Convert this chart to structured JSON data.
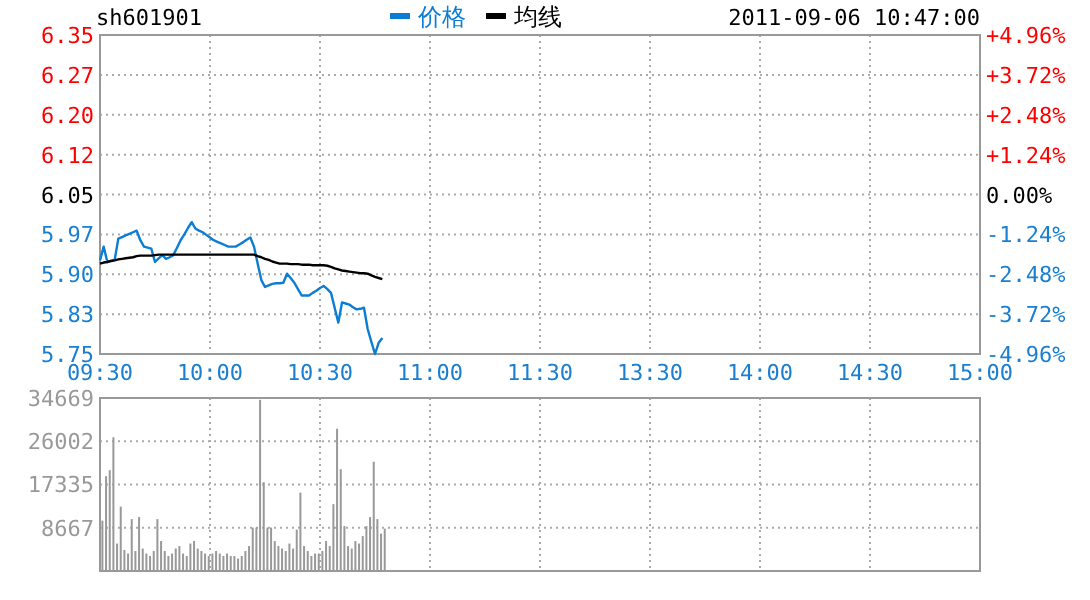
{
  "chart_data": [
    {
      "type": "line",
      "title": "sh601901",
      "subtitle": "2011-09-06 10:47:00",
      "legend": "top",
      "grid": true,
      "categories": [
        "09:30",
        null,
        null,
        null,
        null,
        null,
        null,
        null,
        null,
        null,
        null,
        null,
        null,
        null,
        null,
        null,
        null,
        null,
        null,
        null,
        null,
        null,
        null,
        null,
        null,
        null,
        null,
        null,
        null,
        null,
        "10:00",
        null,
        null,
        null,
        null,
        null,
        null,
        null,
        null,
        null,
        null,
        null,
        null,
        null,
        null,
        null,
        null,
        null,
        null,
        null,
        null,
        null,
        null,
        null,
        null,
        null,
        null,
        null,
        null,
        null,
        "10:30",
        null,
        null,
        null,
        null,
        null,
        null,
        null,
        null,
        null,
        null,
        null,
        null,
        null,
        null,
        null,
        null,
        null,
        null,
        null,
        null,
        null,
        null,
        null,
        null,
        null,
        null,
        null,
        null,
        null,
        "11:00",
        null,
        null,
        null,
        null,
        null,
        null,
        null,
        null,
        null,
        null,
        null,
        null,
        null,
        null,
        null,
        null,
        null,
        null,
        null,
        null,
        null,
        null,
        null,
        null,
        null,
        null,
        null,
        null,
        null,
        "11:30",
        null,
        null,
        null,
        null,
        null,
        null,
        null,
        null,
        null,
        null,
        null,
        null,
        null,
        null,
        null,
        null,
        null,
        null,
        null,
        null,
        null,
        null,
        null,
        null,
        null,
        null,
        null,
        null,
        null,
        "13:30",
        null,
        null,
        null,
        null,
        null,
        null,
        null,
        null,
        null,
        null,
        null,
        null,
        null,
        null,
        null,
        null,
        null,
        null,
        null,
        null,
        null,
        null,
        null,
        null,
        null,
        null,
        null,
        null,
        null,
        "14:00",
        null,
        null,
        null,
        null,
        null,
        null,
        null,
        null,
        null,
        null,
        null,
        null,
        null,
        null,
        null,
        null,
        null,
        null,
        null,
        null,
        null,
        null,
        null,
        null,
        null,
        null,
        null,
        null,
        null,
        "14:30",
        null,
        null,
        null,
        null,
        null,
        null,
        null,
        null,
        null,
        null,
        null,
        null,
        null,
        null,
        null,
        null,
        null,
        null,
        null,
        null,
        null,
        null,
        null,
        null,
        null,
        null,
        null,
        null,
        null,
        "15:00"
      ],
      "ylim": [
        5.75,
        6.35
      ],
      "yticks": [
        {
          "value": 5.75,
          "label": "5.75"
        },
        {
          "value": 5.825,
          "label": "5.83"
        },
        {
          "value": 5.9,
          "label": "5.90"
        },
        {
          "value": 5.975,
          "label": "5.97"
        },
        {
          "value": 6.05,
          "label": "6.05"
        },
        {
          "value": 6.125,
          "label": "6.12"
        },
        {
          "value": 6.2,
          "label": "6.20"
        },
        {
          "value": 6.275,
          "label": "6.27"
        },
        {
          "value": 6.35,
          "label": "6.35"
        }
      ],
      "y2lim": [
        -4.96,
        4.96
      ],
      "y2ticks": [
        {
          "value": -4.96,
          "label": "-4.96%"
        },
        {
          "value": -3.72,
          "label": "-3.72%"
        },
        {
          "value": -2.48,
          "label": "-2.48%"
        },
        {
          "value": -1.24,
          "label": "-1.24%"
        },
        {
          "value": 0,
          "label": "0.00%"
        },
        {
          "value": 1.24,
          "label": "+1.24%"
        },
        {
          "value": 2.48,
          "label": "+2.48%"
        },
        {
          "value": 3.72,
          "label": "+3.72%"
        },
        {
          "value": 4.96,
          "label": "+4.96%"
        }
      ],
      "series": [
        {
          "name": "价格",
          "color": "#0b7dd3",
          "values": [
            5.926,
            5.952,
            5.923,
            5.925,
            5.927,
            5.967,
            5.97,
            5.973,
            5.976,
            5.979,
            5.982,
            5.964,
            5.952,
            5.95,
            5.948,
            5.923,
            5.93,
            5.936,
            5.929,
            5.932,
            5.936,
            5.95,
            5.964,
            5.975,
            5.987,
            5.998,
            5.986,
            5.982,
            5.979,
            5.974,
            5.969,
            5.964,
            5.961,
            5.958,
            5.955,
            5.952,
            5.952,
            5.952,
            5.956,
            5.96,
            5.965,
            5.969,
            5.952,
            5.92,
            5.889,
            5.876,
            5.879,
            5.882,
            5.883,
            5.883,
            5.884,
            5.901,
            5.893,
            5.884,
            5.872,
            5.86,
            5.86,
            5.86,
            5.865,
            5.869,
            5.874,
            5.878,
            5.872,
            5.865,
            5.837,
            5.809,
            5.847,
            5.845,
            5.843,
            5.838,
            5.834,
            5.835,
            5.837,
            5.797,
            5.773,
            5.75,
            5.771,
            5.78,
            null,
            null,
            null,
            null,
            null,
            null,
            null,
            null,
            null,
            null,
            null,
            null,
            null,
            null,
            null,
            null,
            null,
            null,
            null,
            null,
            null,
            null,
            null,
            null,
            null,
            null,
            null,
            null,
            null,
            null,
            null,
            null,
            null,
            null,
            null,
            null,
            null,
            null,
            null,
            null,
            null,
            null,
            null,
            null,
            null,
            null,
            null,
            null,
            null,
            null,
            null,
            null,
            null,
            null,
            null,
            null,
            null,
            null,
            null,
            null,
            null,
            null,
            null,
            null,
            null,
            null,
            null,
            null,
            null,
            null,
            null,
            null,
            null,
            null,
            null,
            null,
            null,
            null,
            null,
            null,
            null,
            null,
            null,
            null,
            null,
            null,
            null,
            null,
            null,
            null,
            null,
            null,
            null,
            null,
            null,
            null,
            null,
            null,
            null,
            null,
            null,
            null,
            null,
            null,
            null,
            null,
            null,
            null,
            null,
            null,
            null,
            null,
            null,
            null,
            null,
            null,
            null,
            null,
            null,
            null,
            null,
            null,
            null,
            null,
            null,
            null,
            null,
            null,
            null,
            null,
            null,
            null,
            null,
            null,
            null,
            null,
            null,
            null,
            null,
            null,
            null,
            null,
            null,
            null,
            null,
            null,
            null,
            null,
            null,
            null,
            null,
            null,
            null,
            null,
            null,
            null,
            null,
            null,
            null,
            null,
            null,
            null,
            null
          ]
        },
        {
          "name": "均线",
          "color": "#000000",
          "values": [
            5.92,
            5.922,
            5.923,
            5.925,
            5.926,
            5.928,
            5.929,
            5.93,
            5.931,
            5.932,
            5.934,
            5.935,
            5.935,
            5.935,
            5.935,
            5.936,
            5.937,
            5.937,
            5.937,
            5.937,
            5.937,
            5.937,
            5.937,
            5.937,
            5.937,
            5.937,
            5.937,
            5.937,
            5.937,
            5.937,
            5.937,
            5.937,
            5.937,
            5.937,
            5.937,
            5.937,
            5.937,
            5.937,
            5.937,
            5.937,
            5.937,
            5.937,
            5.937,
            5.934,
            5.932,
            5.929,
            5.927,
            5.924,
            5.922,
            5.92,
            5.92,
            5.92,
            5.919,
            5.919,
            5.919,
            5.918,
            5.918,
            5.918,
            5.917,
            5.917,
            5.917,
            5.917,
            5.916,
            5.914,
            5.911,
            5.909,
            5.907,
            5.906,
            5.905,
            5.904,
            5.903,
            5.902,
            5.902,
            5.901,
            5.898,
            5.895,
            5.893,
            5.891,
            null,
            null,
            null,
            null,
            null,
            null,
            null,
            null,
            null,
            null,
            null,
            null,
            null,
            null,
            null,
            null,
            null,
            null,
            null,
            null,
            null,
            null,
            null,
            null,
            null,
            null,
            null,
            null,
            null,
            null,
            null,
            null,
            null,
            null,
            null,
            null,
            null,
            null,
            null,
            null,
            null,
            null,
            null,
            null,
            null,
            null,
            null,
            null,
            null,
            null,
            null,
            null,
            null,
            null,
            null,
            null,
            null,
            null,
            null,
            null,
            null,
            null,
            null,
            null,
            null,
            null,
            null,
            null,
            null,
            null,
            null,
            null,
            null,
            null,
            null,
            null,
            null,
            null,
            null,
            null,
            null,
            null,
            null,
            null,
            null,
            null,
            null,
            null,
            null,
            null,
            null,
            null,
            null,
            null,
            null,
            null,
            null,
            null,
            null,
            null,
            null,
            null,
            null,
            null,
            null,
            null,
            null,
            null,
            null,
            null,
            null,
            null,
            null,
            null,
            null,
            null,
            null,
            null,
            null,
            null,
            null,
            null,
            null,
            null,
            null,
            null,
            null,
            null,
            null,
            null,
            null,
            null,
            null,
            null,
            null,
            null,
            null,
            null,
            null,
            null,
            null,
            null,
            null,
            null,
            null,
            null,
            null,
            null,
            null,
            null,
            null,
            null,
            null,
            null,
            null,
            null,
            null,
            null,
            null,
            null,
            null,
            null,
            null
          ]
        }
      ]
    },
    {
      "type": "bar",
      "color": "#999999",
      "grid": true,
      "tick_labels": "y",
      "categories": [
        null,
        null,
        null,
        null,
        null,
        null,
        null,
        null,
        null,
        null,
        null,
        null,
        null,
        null,
        null,
        null,
        null,
        null,
        null,
        null,
        null,
        null,
        null,
        null,
        null,
        null,
        null,
        null,
        null,
        null,
        null,
        null,
        null,
        null,
        null,
        null,
        null,
        null,
        null,
        null,
        null,
        null,
        null,
        null,
        null,
        null,
        null,
        null,
        null,
        null,
        null,
        null,
        null,
        null,
        null,
        null,
        null,
        null,
        null,
        null,
        null,
        null,
        null,
        null,
        null,
        null,
        null,
        null,
        null,
        null,
        null,
        null,
        null,
        null,
        null,
        null,
        null,
        null,
        null,
        null,
        null,
        null,
        null,
        null,
        null,
        null,
        null,
        null,
        null,
        null,
        null,
        null,
        null,
        null,
        null,
        null,
        null,
        null,
        null,
        null,
        null,
        null,
        null,
        null,
        null,
        null,
        null,
        null,
        null,
        null,
        null,
        null,
        null,
        null,
        null,
        null,
        null,
        null,
        null,
        null,
        null,
        null,
        null,
        null,
        null,
        null,
        null,
        null,
        null,
        null,
        null,
        null,
        null,
        null,
        null,
        null,
        null,
        null,
        null,
        null,
        null,
        null,
        null,
        null,
        null,
        null,
        null,
        null,
        null,
        null,
        null,
        null,
        null,
        null,
        null,
        null,
        null,
        null,
        null,
        null,
        null,
        null,
        null,
        null,
        null,
        null,
        null,
        null,
        null,
        null,
        null,
        null,
        null,
        null,
        null,
        null,
        null,
        null,
        null,
        null,
        null,
        null,
        null,
        null,
        null,
        null,
        null,
        null,
        null,
        null,
        null,
        null,
        null,
        null,
        null,
        null,
        null,
        null,
        null,
        null,
        null,
        null,
        null,
        null,
        null,
        null,
        null,
        null,
        null,
        null,
        null,
        null,
        null,
        null,
        null,
        null,
        null,
        null,
        null,
        null,
        null,
        null,
        null,
        null,
        null,
        null,
        null,
        null,
        null,
        null,
        null,
        null,
        null,
        null,
        null,
        null,
        null,
        null,
        null,
        null,
        null
      ],
      "values": [
        10100,
        19000,
        20200,
        26800,
        5500,
        12900,
        4200,
        3500,
        10400,
        4000,
        10800,
        4500,
        3500,
        3000,
        4000,
        10400,
        6000,
        4000,
        3000,
        3500,
        4500,
        5000,
        3500,
        3000,
        5500,
        6000,
        4500,
        4000,
        3500,
        3000,
        3500,
        4000,
        3500,
        3000,
        3500,
        3000,
        3000,
        2500,
        3000,
        4000,
        5000,
        8700,
        8700,
        34300,
        17800,
        8700,
        8700,
        6000,
        5000,
        4500,
        4000,
        5500,
        4500,
        8300,
        15700,
        5000,
        4000,
        3000,
        3500,
        3500,
        4000,
        6000,
        5000,
        13400,
        28500,
        20400,
        9000,
        5000,
        4500,
        6000,
        5500,
        7000,
        9000,
        10800,
        21900,
        10400,
        7500,
        8500,
        null,
        null,
        null,
        null,
        null,
        null,
        null,
        null,
        null,
        null,
        null,
        null,
        null,
        null,
        null,
        null,
        null,
        null,
        null,
        null,
        null,
        null,
        null,
        null,
        null,
        null,
        null,
        null,
        null,
        null,
        null,
        null,
        null,
        null,
        null,
        null,
        null,
        null,
        null,
        null,
        null,
        null,
        null,
        null,
        null,
        null,
        null,
        null,
        null,
        null,
        null,
        null,
        null,
        null,
        null,
        null,
        null,
        null,
        null,
        null,
        null,
        null,
        null,
        null,
        null,
        null,
        null,
        null,
        null,
        null,
        null,
        null,
        null,
        null,
        null,
        null,
        null,
        null,
        null,
        null,
        null,
        null,
        null,
        null,
        null,
        null,
        null,
        null,
        null,
        null,
        null,
        null,
        null,
        null,
        null,
        null,
        null,
        null,
        null,
        null,
        null,
        null,
        null,
        null,
        null,
        null,
        null,
        null,
        null,
        null,
        null,
        null,
        null,
        null,
        null,
        null,
        null,
        null,
        null,
        null,
        null,
        null,
        null,
        null,
        null,
        null,
        null,
        null,
        null,
        null,
        null,
        null,
        null,
        null,
        null,
        null,
        null,
        null,
        null,
        null,
        null,
        null,
        null,
        null,
        null,
        null,
        null,
        null,
        null,
        null,
        null,
        null,
        null,
        null,
        null,
        null,
        null,
        null,
        null,
        null,
        null,
        null,
        null
      ],
      "ylim": [
        0,
        34669
      ],
      "yticks": [
        8667,
        17335,
        26002,
        34669
      ]
    }
  ]
}
